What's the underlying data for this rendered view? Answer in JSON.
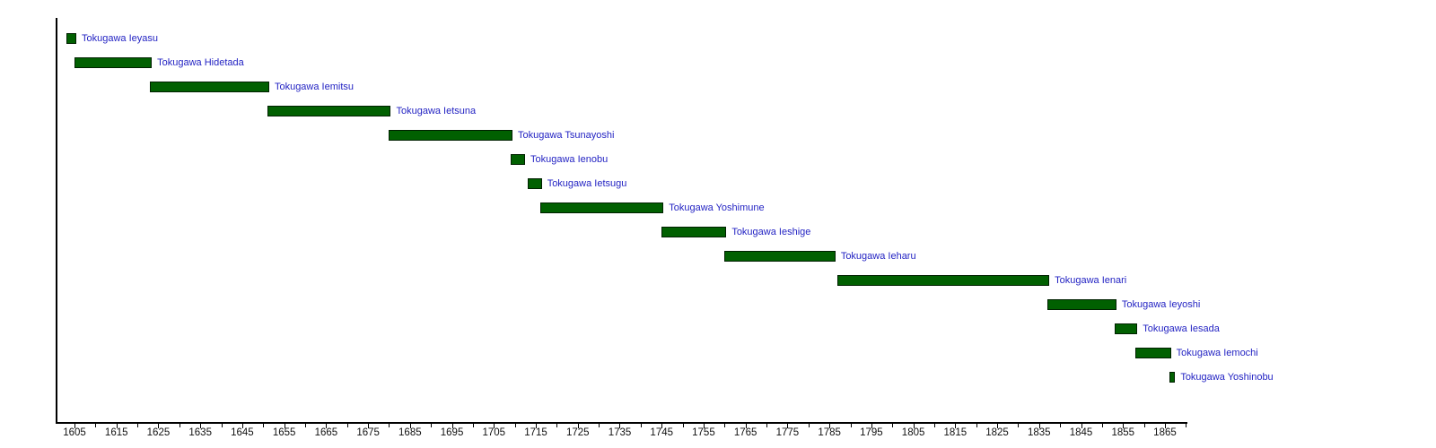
{
  "chart_data": {
    "type": "gantt",
    "title": "",
    "xlabel": "",
    "ylabel": "",
    "xlim": [
      1601,
      1870
    ],
    "grid": false,
    "legend": "none",
    "bars": [
      {
        "label": "Tokugawa Ieyasu",
        "start": 1603,
        "end": 1605
      },
      {
        "label": "Tokugawa Hidetada",
        "start": 1605,
        "end": 1623
      },
      {
        "label": "Tokugawa Iemitsu",
        "start": 1623,
        "end": 1651
      },
      {
        "label": "Tokugawa Ietsuna",
        "start": 1651,
        "end": 1680
      },
      {
        "label": "Tokugawa Tsunayoshi",
        "start": 1680,
        "end": 1709
      },
      {
        "label": "Tokugawa Ienobu",
        "start": 1709,
        "end": 1712
      },
      {
        "label": "Tokugawa Ietsugu",
        "start": 1713,
        "end": 1716
      },
      {
        "label": "Tokugawa Yoshimune",
        "start": 1716,
        "end": 1745
      },
      {
        "label": "Tokugawa Ieshige",
        "start": 1745,
        "end": 1760
      },
      {
        "label": "Tokugawa Ieharu",
        "start": 1760,
        "end": 1786
      },
      {
        "label": "Tokugawa Ienari",
        "start": 1787,
        "end": 1837
      },
      {
        "label": "Tokugawa Ieyoshi",
        "start": 1837,
        "end": 1853
      },
      {
        "label": "Tokugawa Iesada",
        "start": 1853,
        "end": 1858
      },
      {
        "label": "Tokugawa Iemochi",
        "start": 1858,
        "end": 1866
      },
      {
        "label": "Tokugawa Yoshinobu",
        "start": 1866,
        "end": 1867
      }
    ],
    "axis": {
      "tick_min": 1605,
      "tick_max": 1870,
      "tick_step": 5,
      "label_step": 10,
      "tick_labels": [
        "1605",
        "1615",
        "1625",
        "1635",
        "1645",
        "1655",
        "1665",
        "1675",
        "1685",
        "1695",
        "1705",
        "1715",
        "1725",
        "1735",
        "1745",
        "1755",
        "1765",
        "1775",
        "1785",
        "1795",
        "1805",
        "1815",
        "1825",
        "1835",
        "1845",
        "1855",
        "1865"
      ]
    },
    "colors": {
      "bar_fill": "#016001",
      "bar_border": "#002000",
      "label_text": "#2323c3",
      "axis_color": "#000000",
      "tick_text": "#111111"
    }
  }
}
